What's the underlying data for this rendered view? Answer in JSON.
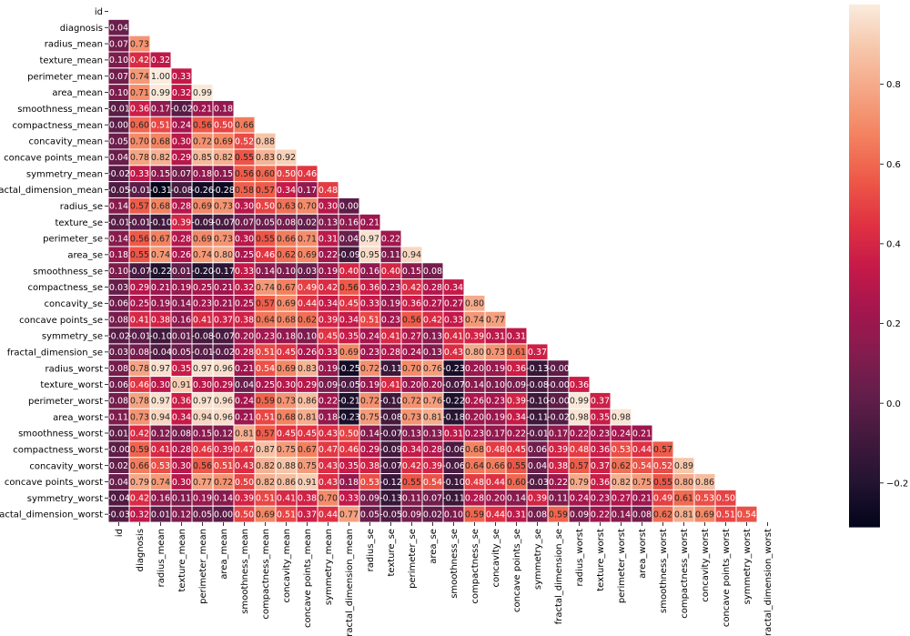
{
  "chart_data": {
    "type": "heatmap",
    "title": "",
    "mask": "upper-triangle",
    "labels": [
      "id",
      "diagnosis",
      "radius_mean",
      "texture_mean",
      "perimeter_mean",
      "area_mean",
      "smoothness_mean",
      "compactness_mean",
      "concavity_mean",
      "concave points_mean",
      "symmetry_mean",
      "fractal_dimension_mean",
      "radius_se",
      "texture_se",
      "perimeter_se",
      "area_se",
      "smoothness_se",
      "compactness_se",
      "concavity_se",
      "concave points_se",
      "symmetry_se",
      "fractal_dimension_se",
      "radius_worst",
      "texture_worst",
      "perimeter_worst",
      "area_worst",
      "smoothness_worst",
      "compactness_worst",
      "concavity_worst",
      "concave points_worst",
      "symmetry_worst",
      "fractal_dimension_worst"
    ],
    "lower_triangle_values": [
      [],
      [
        0.04
      ],
      [
        0.07,
        0.73
      ],
      [
        0.1,
        0.42,
        0.32
      ],
      [
        0.07,
        0.74,
        1.0,
        0.33
      ],
      [
        0.1,
        0.71,
        0.99,
        0.32,
        0.99
      ],
      [
        -0.01,
        0.36,
        0.17,
        -0.02,
        0.21,
        0.18
      ],
      [
        0.0,
        0.6,
        0.51,
        0.24,
        0.56,
        0.5,
        0.66
      ],
      [
        0.05,
        0.7,
        0.68,
        0.3,
        0.72,
        0.69,
        0.52,
        0.88
      ],
      [
        0.04,
        0.78,
        0.82,
        0.29,
        0.85,
        0.82,
        0.55,
        0.83,
        0.92
      ],
      [
        -0.02,
        0.33,
        0.15,
        0.07,
        0.18,
        0.15,
        0.56,
        0.6,
        0.5,
        0.46
      ],
      [
        -0.05,
        -0.01,
        -0.31,
        -0.08,
        -0.26,
        -0.28,
        0.58,
        0.57,
        0.34,
        0.17,
        0.48
      ],
      [
        0.14,
        0.57,
        0.68,
        0.28,
        0.69,
        0.73,
        0.3,
        0.5,
        0.63,
        0.7,
        0.3,
        0.0
      ],
      [
        -0.01,
        -0.01,
        -0.1,
        0.39,
        -0.09,
        -0.07,
        0.07,
        0.05,
        0.08,
        0.02,
        0.13,
        0.16,
        0.21
      ],
      [
        0.14,
        0.56,
        0.67,
        0.28,
        0.69,
        0.73,
        0.3,
        0.55,
        0.66,
        0.71,
        0.31,
        0.04,
        0.97,
        0.22
      ],
      [
        0.18,
        0.55,
        0.74,
        0.26,
        0.74,
        0.8,
        0.25,
        0.46,
        0.62,
        0.69,
        0.22,
        -0.09,
        0.95,
        0.11,
        0.94
      ],
      [
        0.1,
        -0.07,
        -0.22,
        0.01,
        -0.2,
        -0.17,
        0.33,
        0.14,
        0.1,
        0.03,
        0.19,
        0.4,
        0.16,
        0.4,
        0.15,
        0.08
      ],
      [
        0.03,
        0.29,
        0.21,
        0.19,
        0.25,
        0.21,
        0.32,
        0.74,
        0.67,
        0.49,
        0.42,
        0.56,
        0.36,
        0.23,
        0.42,
        0.28,
        0.34
      ],
      [
        0.06,
        0.25,
        0.19,
        0.14,
        0.23,
        0.21,
        0.25,
        0.57,
        0.69,
        0.44,
        0.34,
        0.45,
        0.33,
        0.19,
        0.36,
        0.27,
        0.27,
        0.8
      ],
      [
        0.08,
        0.41,
        0.38,
        0.16,
        0.41,
        0.37,
        0.38,
        0.64,
        0.68,
        0.62,
        0.39,
        0.34,
        0.51,
        0.23,
        0.56,
        0.42,
        0.33,
        0.74,
        0.77
      ],
      [
        -0.02,
        -0.01,
        -0.1,
        0.01,
        -0.08,
        -0.07,
        0.2,
        0.23,
        0.18,
        0.1,
        0.45,
        0.35,
        0.24,
        0.41,
        0.27,
        0.13,
        0.41,
        0.39,
        0.31,
        0.31
      ],
      [
        0.03,
        0.08,
        -0.04,
        0.05,
        -0.01,
        -0.02,
        0.28,
        0.51,
        0.45,
        0.26,
        0.33,
        0.69,
        0.23,
        0.28,
        0.24,
        0.13,
        0.43,
        0.8,
        0.73,
        0.61,
        0.37
      ],
      [
        0.08,
        0.78,
        0.97,
        0.35,
        0.97,
        0.96,
        0.21,
        0.54,
        0.69,
        0.83,
        0.19,
        -0.25,
        0.72,
        -0.11,
        0.7,
        0.76,
        -0.23,
        0.2,
        0.19,
        0.36,
        -0.13,
        -0.0
      ],
      [
        0.06,
        0.46,
        0.3,
        0.91,
        0.3,
        0.29,
        0.04,
        0.25,
        0.3,
        0.29,
        0.09,
        -0.05,
        0.19,
        0.41,
        0.2,
        0.2,
        -0.07,
        0.14,
        0.1,
        0.09,
        -0.08,
        -0.0,
        0.36
      ],
      [
        0.08,
        0.78,
        0.97,
        0.36,
        0.97,
        0.96,
        0.24,
        0.59,
        0.73,
        0.86,
        0.22,
        -0.21,
        0.72,
        -0.1,
        0.72,
        0.76,
        -0.22,
        0.26,
        0.23,
        0.39,
        -0.1,
        -0.0,
        0.99,
        0.37
      ],
      [
        0.11,
        0.73,
        0.94,
        0.34,
        0.94,
        0.96,
        0.21,
        0.51,
        0.68,
        0.81,
        0.18,
        -0.23,
        0.75,
        -0.08,
        0.73,
        0.81,
        -0.18,
        0.2,
        0.19,
        0.34,
        -0.11,
        -0.02,
        0.98,
        0.35,
        0.98
      ],
      [
        0.01,
        0.42,
        0.12,
        0.08,
        0.15,
        0.12,
        0.81,
        0.57,
        0.45,
        0.45,
        0.43,
        0.5,
        0.14,
        -0.07,
        0.13,
        0.13,
        0.31,
        0.23,
        0.17,
        0.22,
        -0.01,
        0.17,
        0.22,
        0.23,
        0.24,
        0.21
      ],
      [
        -0.0,
        0.59,
        0.41,
        0.28,
        0.46,
        0.39,
        0.47,
        0.87,
        0.75,
        0.67,
        0.47,
        0.46,
        0.29,
        -0.09,
        0.34,
        0.28,
        -0.06,
        0.68,
        0.48,
        0.45,
        0.06,
        0.39,
        0.48,
        0.36,
        0.53,
        0.44,
        0.57
      ],
      [
        0.02,
        0.66,
        0.53,
        0.3,
        0.56,
        0.51,
        0.43,
        0.82,
        0.88,
        0.75,
        0.43,
        0.35,
        0.38,
        -0.07,
        0.42,
        0.39,
        -0.06,
        0.64,
        0.66,
        0.55,
        0.04,
        0.38,
        0.57,
        0.37,
        0.62,
        0.54,
        0.52,
        0.89
      ],
      [
        0.04,
        0.79,
        0.74,
        0.3,
        0.77,
        0.72,
        0.5,
        0.82,
        0.86,
        0.91,
        0.43,
        0.18,
        0.53,
        -0.12,
        0.55,
        0.54,
        -0.1,
        0.48,
        0.44,
        0.6,
        -0.03,
        0.22,
        0.79,
        0.36,
        0.82,
        0.75,
        0.55,
        0.8,
        0.86
      ],
      [
        -0.04,
        0.42,
        0.16,
        0.11,
        0.19,
        0.14,
        0.39,
        0.51,
        0.41,
        0.38,
        0.7,
        0.33,
        0.09,
        -0.13,
        0.11,
        0.07,
        -0.11,
        0.28,
        0.2,
        0.14,
        0.39,
        0.11,
        0.24,
        0.23,
        0.27,
        0.21,
        0.49,
        0.61,
        0.53,
        0.5
      ],
      [
        -0.03,
        0.32,
        0.01,
        0.12,
        0.05,
        0.0,
        0.5,
        0.69,
        0.51,
        0.37,
        0.44,
        0.77,
        0.05,
        -0.05,
        0.09,
        0.02,
        0.1,
        0.59,
        0.44,
        0.31,
        0.08,
        0.59,
        0.09,
        0.22,
        0.14,
        0.08,
        0.62,
        0.81,
        0.69,
        0.51,
        0.54
      ]
    ],
    "colorbar": {
      "min": -0.31,
      "max": 1.0,
      "ticks": [
        -0.2,
        0.0,
        0.2,
        0.4,
        0.6,
        0.8
      ],
      "tick_labels": [
        "−0.2",
        "0.0",
        "0.2",
        "0.4",
        "0.6",
        "0.8"
      ]
    },
    "colormap_stops": [
      "#03051a",
      "#221331",
      "#41193d",
      "#621e4a",
      "#841c4e",
      "#a5164e",
      "#c71a48",
      "#e13342",
      "#ee5a48",
      "#f38260",
      "#f5a584",
      "#f6c7ab",
      "#faebdd"
    ],
    "cell_border_color": "#ffffff"
  }
}
